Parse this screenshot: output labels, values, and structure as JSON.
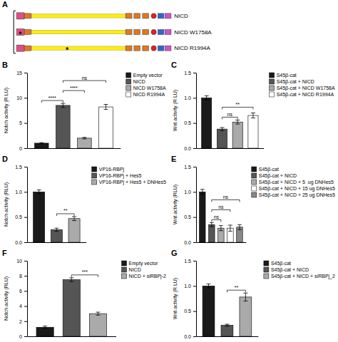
{
  "chart_data": [
    {
      "type": "diagram",
      "title": "A",
      "annotations": [
        {
          "text": "NICD"
        },
        {
          "text": "NICD W1758A",
          "marker": "*"
        },
        {
          "text": "NICD R1994A",
          "marker": "*"
        }
      ]
    },
    {
      "type": "bar",
      "title": "B",
      "categories": [
        "Empty vector",
        "NICD",
        "NICD W1758A",
        "NICD R1994A"
      ],
      "values": [
        1.0,
        8.5,
        2.0,
        8.2
      ],
      "errors": [
        0.1,
        0.4,
        0.15,
        0.5
      ],
      "colors": [
        "#1a1a1a",
        "#555555",
        "#aaaaaa",
        "#ffffff"
      ],
      "ylabel": "Notch activity (R LU)",
      "ylim": [
        0,
        15
      ],
      "yticks": [
        0,
        5,
        10,
        15
      ],
      "legend": "right",
      "tick_labels": "y",
      "grid": false,
      "annotations": [
        {
          "text": "****",
          "between": [
            "Empty vector",
            "NICD"
          ]
        },
        {
          "text": "****",
          "between": [
            "NICD",
            "NICD W1758A"
          ]
        },
        {
          "text": "ns",
          "between": [
            "NICD",
            "NICD R1994A"
          ]
        }
      ]
    },
    {
      "type": "bar",
      "title": "C",
      "categories": [
        "S45β-cat",
        "S45β-cat + NICD",
        "S45β-cat + NICD W1758A",
        "S45β-cat + NICD R1994A"
      ],
      "values": [
        1.0,
        0.38,
        0.52,
        0.65
      ],
      "errors": [
        0.04,
        0.03,
        0.04,
        0.05
      ],
      "colors": [
        "#1a1a1a",
        "#555555",
        "#aaaaaa",
        "#ffffff"
      ],
      "ylabel": "Wnt activity (R LU)",
      "ylim": [
        0.0,
        1.5
      ],
      "yticks": [
        {
          "value": 0.0,
          "label": "0.0"
        },
        0.5,
        {
          "value": 1.0,
          "label": "1.0"
        },
        1.5
      ],
      "legend": "right",
      "tick_labels": "y",
      "grid": false,
      "annotations": [
        {
          "text": "ns",
          "between": [
            "S45β-cat + NICD",
            "S45β-cat + NICD W1758A"
          ]
        },
        {
          "text": "**",
          "between": [
            "S45β-cat + NICD",
            "S45β-cat + NICD R1994A"
          ]
        }
      ]
    },
    {
      "type": "bar",
      "title": "D",
      "categories": [
        "VP16-RBPj",
        "VP16-RBPj + Hes5",
        "VP16-RBPj + Hes5 + DNHes5"
      ],
      "values": [
        1.0,
        0.25,
        0.47
      ],
      "errors": [
        0.04,
        0.03,
        0.04
      ],
      "colors": [
        "#1a1a1a",
        "#555555",
        "#aaaaaa"
      ],
      "ylabel": "Notch activity (RLU)",
      "ylim": [
        0.0,
        1.5
      ],
      "yticks": [
        {
          "value": 0.0,
          "label": "0.0"
        },
        0.5,
        {
          "value": 1.0,
          "label": "1.0"
        },
        1.5
      ],
      "legend": "right",
      "tick_labels": "y",
      "grid": false,
      "annotations": [
        {
          "text": "**",
          "between": [
            "VP16-RBPj + Hes5",
            "VP16-RBPj + Hes5 + DNHes5"
          ]
        }
      ]
    },
    {
      "type": "bar",
      "title": "E",
      "categories": [
        "S45β-cat",
        "S45β-cat + NICD",
        "S45β-cat + NICD + 5  ug DNHes5",
        "S45β-cat + NICD + 15 ug DNHes5",
        "S45β-cat + NICD + 25 ug DNHes5"
      ],
      "values": [
        1.0,
        0.35,
        0.28,
        0.28,
        0.3
      ],
      "errors": [
        0.05,
        0.04,
        0.05,
        0.06,
        0.05
      ],
      "colors": [
        "#1a1a1a",
        "#555555",
        "#aaaaaa",
        "#ffffff",
        "#888888"
      ],
      "ylabel": "Wnt activity (RLU)",
      "ylim": [
        0.0,
        1.5
      ],
      "yticks": [
        {
          "value": 0.0,
          "label": "0.0"
        },
        0.5,
        {
          "value": 1.0,
          "label": "1.0"
        },
        1.5
      ],
      "legend": "right",
      "tick_labels": "y",
      "grid": false,
      "annotations": [
        {
          "text": "ns",
          "between": [
            "S45β-cat + NICD",
            "S45β-cat + NICD + 5  ug DNHes5"
          ]
        },
        {
          "text": "ns",
          "between": [
            "S45β-cat + NICD",
            "S45β-cat + NICD + 15 ug DNHes5"
          ]
        },
        {
          "text": "ns",
          "between": [
            "S45β-cat + NICD",
            "S45β-cat + NICD + 25 ug DNHes5"
          ]
        }
      ]
    },
    {
      "type": "bar",
      "title": "F",
      "categories": [
        "Empty vector",
        "NICD",
        "NICD + siRBPj-2"
      ],
      "values": [
        1.2,
        7.5,
        3.0
      ],
      "errors": [
        0.15,
        0.25,
        0.2
      ],
      "colors": [
        "#1a1a1a",
        "#555555",
        "#aaaaaa"
      ],
      "ylabel": "Notch activity (RLU)",
      "ylim": [
        0,
        10
      ],
      "yticks": [
        0,
        2,
        4,
        6,
        8,
        10
      ],
      "legend": "right",
      "tick_labels": "y",
      "grid": false,
      "annotations": [
        {
          "text": "***",
          "between": [
            "NICD",
            "NICD + siRBPj-2"
          ]
        }
      ]
    },
    {
      "type": "bar",
      "title": "G",
      "categories": [
        "S45β-cat",
        "S45β-cat + NICD",
        "S45β-cat + NICD + siRBPj_2"
      ],
      "values": [
        1.0,
        0.22,
        0.78
      ],
      "errors": [
        0.04,
        0.02,
        0.08
      ],
      "colors": [
        "#1a1a1a",
        "#555555",
        "#aaaaaa"
      ],
      "ylabel": "Wnt activity (R LU)",
      "ylim": [
        0.0,
        1.5
      ],
      "yticks": [
        {
          "value": 0.0,
          "label": "0.0"
        },
        0.5,
        {
          "value": 1.0,
          "label": "1.0"
        },
        1.5
      ],
      "legend": "right",
      "tick_labels": "y",
      "grid": false,
      "annotations": [
        {
          "text": "**",
          "between": [
            "S45β-cat + NICD",
            "S45β-cat + NICD + siRBPj_2"
          ]
        }
      ]
    }
  ]
}
